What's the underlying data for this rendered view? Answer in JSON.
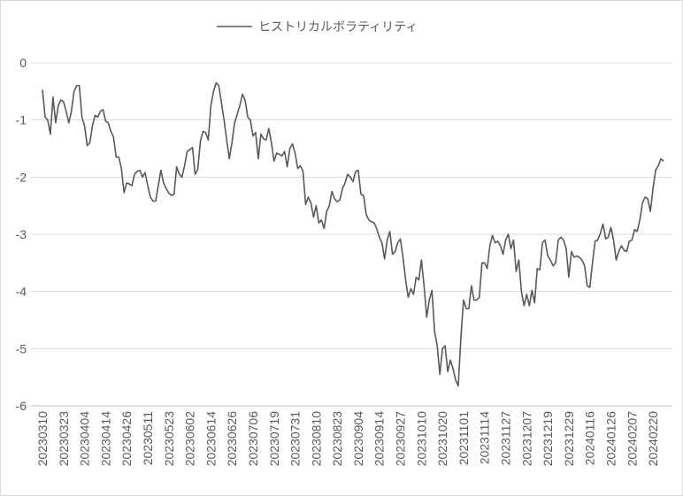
{
  "chart_data": {
    "type": "line",
    "series": [
      {
        "name": "ヒストリカルボラティリティ",
        "color": "#595959",
        "values": [
          -0.47,
          -0.95,
          -1.0,
          -1.25,
          -0.6,
          -1.05,
          -0.75,
          -0.65,
          -0.68,
          -0.85,
          -1.05,
          -0.85,
          -0.5,
          -0.4,
          -0.4,
          -0.95,
          -1.1,
          -1.45,
          -1.4,
          -1.1,
          -0.92,
          -0.95,
          -0.85,
          -0.82,
          -1.02,
          -1.05,
          -1.2,
          -1.3,
          -1.65,
          -1.65,
          -1.85,
          -2.27,
          -2.1,
          -2.12,
          -2.15,
          -1.95,
          -1.9,
          -1.88,
          -2.0,
          -1.92,
          -2.15,
          -2.35,
          -2.42,
          -2.42,
          -2.15,
          -1.88,
          -2.1,
          -2.2,
          -2.28,
          -2.32,
          -2.3,
          -1.82,
          -1.95,
          -2.0,
          -1.8,
          -1.55,
          -1.52,
          -1.48,
          -1.95,
          -1.87,
          -1.38,
          -1.2,
          -1.22,
          -1.35,
          -0.75,
          -0.5,
          -0.35,
          -0.4,
          -0.7,
          -1.0,
          -1.35,
          -1.68,
          -1.4,
          -1.05,
          -0.9,
          -0.75,
          -0.55,
          -0.65,
          -0.95,
          -1.0,
          -1.28,
          -1.22,
          -1.68,
          -1.25,
          -1.33,
          -1.35,
          -1.15,
          -1.4,
          -1.72,
          -1.58,
          -1.6,
          -1.63,
          -1.55,
          -1.82,
          -1.5,
          -1.42,
          -1.58,
          -1.85,
          -1.8,
          -1.9,
          -2.48,
          -2.35,
          -2.45,
          -2.7,
          -2.5,
          -2.8,
          -2.75,
          -2.9,
          -2.6,
          -2.5,
          -2.25,
          -2.38,
          -2.43,
          -2.4,
          -2.2,
          -2.1,
          -1.95,
          -2.0,
          -2.08,
          -1.9,
          -1.88,
          -2.3,
          -2.32,
          -2.65,
          -2.75,
          -2.78,
          -2.8,
          -2.9,
          -3.05,
          -3.15,
          -3.43,
          -3.1,
          -2.95,
          -3.35,
          -3.3,
          -3.15,
          -3.08,
          -3.4,
          -3.8,
          -4.1,
          -3.95,
          -4.05,
          -3.75,
          -3.8,
          -3.45,
          -3.9,
          -4.45,
          -4.15,
          -3.98,
          -4.7,
          -4.95,
          -5.45,
          -5.0,
          -4.95,
          -5.4,
          -5.2,
          -5.35,
          -5.55,
          -5.65,
          -4.8,
          -4.15,
          -4.3,
          -4.3,
          -3.9,
          -4.15,
          -4.15,
          -4.1,
          -3.5,
          -3.5,
          -3.6,
          -3.2,
          -3.02,
          -3.15,
          -3.12,
          -3.2,
          -3.35,
          -3.1,
          -3.0,
          -3.25,
          -3.1,
          -3.65,
          -3.45,
          -4.0,
          -4.25,
          -4.05,
          -4.25,
          -3.98,
          -4.2,
          -3.6,
          -3.62,
          -3.15,
          -3.1,
          -3.38,
          -3.45,
          -3.55,
          -3.5,
          -3.1,
          -3.05,
          -3.1,
          -3.25,
          -3.75,
          -3.3,
          -3.4,
          -3.38,
          -3.4,
          -3.45,
          -3.55,
          -3.9,
          -3.93,
          -3.5,
          -3.12,
          -3.1,
          -2.98,
          -2.82,
          -3.08,
          -3.05,
          -2.88,
          -3.1,
          -3.45,
          -3.3,
          -3.2,
          -3.28,
          -3.3,
          -3.12,
          -3.1,
          -2.92,
          -2.95,
          -2.75,
          -2.45,
          -2.35,
          -2.38,
          -2.6,
          -2.2,
          -1.88,
          -1.8,
          -1.68,
          -1.72
        ]
      }
    ],
    "categories": [
      "20230310",
      null,
      null,
      null,
      null,
      null,
      null,
      null,
      "20230323",
      null,
      null,
      null,
      null,
      null,
      null,
      null,
      "20230404",
      null,
      null,
      null,
      null,
      null,
      null,
      null,
      "20230414",
      null,
      null,
      null,
      null,
      null,
      null,
      null,
      "20230426",
      null,
      null,
      null,
      null,
      null,
      null,
      null,
      "20230511",
      null,
      null,
      null,
      null,
      null,
      null,
      null,
      "20230523",
      null,
      null,
      null,
      null,
      null,
      null,
      null,
      "20230602",
      null,
      null,
      null,
      null,
      null,
      null,
      null,
      "20230614",
      null,
      null,
      null,
      null,
      null,
      null,
      null,
      "20230626",
      null,
      null,
      null,
      null,
      null,
      null,
      null,
      "20230706",
      null,
      null,
      null,
      null,
      null,
      null,
      null,
      "20230719",
      null,
      null,
      null,
      null,
      null,
      null,
      null,
      "20230731",
      null,
      null,
      null,
      null,
      null,
      null,
      null,
      "20230810",
      null,
      null,
      null,
      null,
      null,
      null,
      null,
      "20230823",
      null,
      null,
      null,
      null,
      null,
      null,
      null,
      "20230904",
      null,
      null,
      null,
      null,
      null,
      null,
      null,
      "20230914",
      null,
      null,
      null,
      null,
      null,
      null,
      null,
      "20230927",
      null,
      null,
      null,
      null,
      null,
      null,
      null,
      "20231010",
      null,
      null,
      null,
      null,
      null,
      null,
      null,
      "20231020",
      null,
      null,
      null,
      null,
      null,
      null,
      null,
      "20231101",
      null,
      null,
      null,
      null,
      null,
      null,
      null,
      "20231114",
      null,
      null,
      null,
      null,
      null,
      null,
      null,
      "20231127",
      null,
      null,
      null,
      null,
      null,
      null,
      null,
      "20231207",
      null,
      null,
      null,
      null,
      null,
      null,
      null,
      "20231219",
      null,
      null,
      null,
      null,
      null,
      null,
      null,
      "20231229",
      null,
      null,
      null,
      null,
      null,
      null,
      null,
      "20240116",
      null,
      null,
      null,
      null,
      null,
      null,
      null,
      "20240126",
      null,
      null,
      null,
      null,
      null,
      null,
      null,
      "20240207",
      null,
      null,
      null,
      null,
      null,
      null,
      null,
      "20240220",
      null,
      null,
      null,
      null
    ],
    "ylim": [
      -6,
      0
    ],
    "yticks": [
      0,
      -1,
      -2,
      -3,
      -4,
      -5,
      -6
    ],
    "grid": true,
    "legend": "top"
  }
}
